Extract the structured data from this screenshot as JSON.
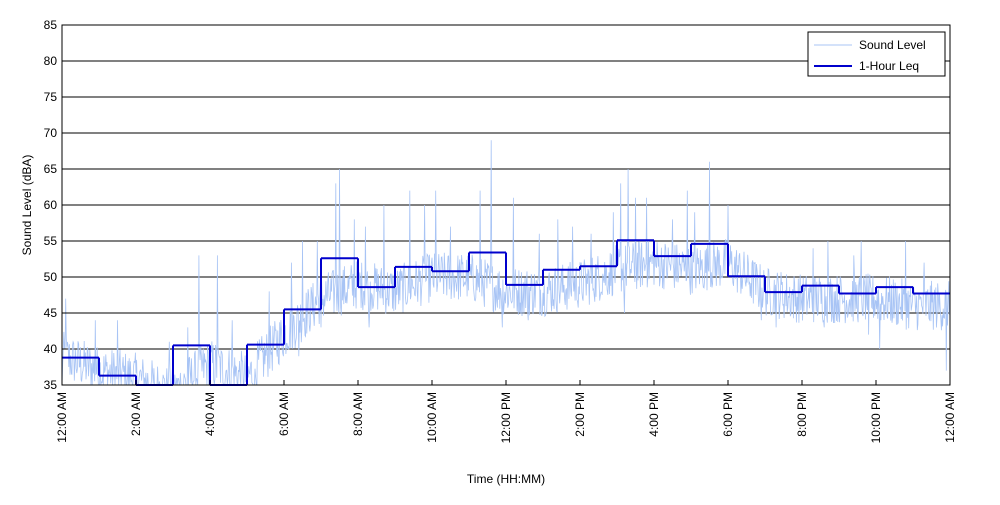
{
  "chart_data": {
    "type": "line",
    "xlabel": "Time (HH:MM)",
    "ylabel": "Sound Level (dBA)",
    "ylim": [
      35,
      85
    ],
    "xlim": [
      0,
      24
    ],
    "yticks": [
      35,
      40,
      45,
      50,
      55,
      60,
      65,
      70,
      75,
      80,
      85
    ],
    "xticks": [
      {
        "hour": 0,
        "label": "12:00 AM"
      },
      {
        "hour": 2,
        "label": "2:00 AM"
      },
      {
        "hour": 4,
        "label": "4:00 AM"
      },
      {
        "hour": 6,
        "label": "6:00 AM"
      },
      {
        "hour": 8,
        "label": "8:00 AM"
      },
      {
        "hour": 10,
        "label": "10:00 AM"
      },
      {
        "hour": 12,
        "label": "12:00 PM"
      },
      {
        "hour": 14,
        "label": "2:00 PM"
      },
      {
        "hour": 16,
        "label": "4:00 PM"
      },
      {
        "hour": 18,
        "label": "6:00 PM"
      },
      {
        "hour": 20,
        "label": "8:00 PM"
      },
      {
        "hour": 22,
        "label": "10:00 PM"
      },
      {
        "hour": 24,
        "label": "12:00 AM"
      }
    ],
    "grid": "horizontal",
    "legend_position": "top-right",
    "colors": {
      "sound_level": "#a8c4f5",
      "leq": "#0000cc"
    },
    "series": [
      {
        "name": "Sound Level",
        "hour_means": [
          39,
          37,
          36,
          34,
          38,
          36,
          42,
          47,
          49,
          48,
          50,
          50,
          48,
          48,
          49,
          51,
          52,
          51,
          52,
          48,
          47,
          47,
          47,
          46
        ],
        "noise_amplitude": 3.5,
        "peaks": [
          [
            0.1,
            47
          ],
          [
            0.9,
            44
          ],
          [
            1.5,
            44
          ],
          [
            2.9,
            41
          ],
          [
            3.4,
            43
          ],
          [
            3.7,
            53
          ],
          [
            4.2,
            53
          ],
          [
            4.6,
            44
          ],
          [
            5.6,
            48
          ],
          [
            6.2,
            52
          ],
          [
            6.5,
            55
          ],
          [
            6.9,
            55
          ],
          [
            7.4,
            63
          ],
          [
            7.5,
            65
          ],
          [
            7.9,
            58
          ],
          [
            8.2,
            57
          ],
          [
            8.7,
            60
          ],
          [
            9.4,
            62
          ],
          [
            9.8,
            60
          ],
          [
            10.1,
            62
          ],
          [
            10.5,
            57
          ],
          [
            11.3,
            62
          ],
          [
            11.6,
            69
          ],
          [
            12.2,
            61
          ],
          [
            12.9,
            56
          ],
          [
            13.4,
            58
          ],
          [
            13.8,
            57
          ],
          [
            14.3,
            56
          ],
          [
            14.9,
            59
          ],
          [
            15.1,
            63
          ],
          [
            15.3,
            65
          ],
          [
            15.5,
            61
          ],
          [
            15.8,
            61
          ],
          [
            16.5,
            58
          ],
          [
            16.9,
            62
          ],
          [
            17.1,
            59
          ],
          [
            17.5,
            66
          ],
          [
            18.0,
            60
          ],
          [
            18.7,
            52
          ],
          [
            19.3,
            56
          ],
          [
            20.3,
            54
          ],
          [
            20.7,
            55
          ],
          [
            21.4,
            53
          ],
          [
            21.6,
            55
          ],
          [
            22.1,
            54
          ],
          [
            22.8,
            55
          ],
          [
            23.3,
            52
          ],
          [
            23.9,
            52
          ]
        ],
        "troughs": [
          [
            0.0,
            35
          ],
          [
            1.0,
            35
          ],
          [
            1.7,
            35
          ],
          [
            2.5,
            34
          ],
          [
            4.4,
            35
          ],
          [
            5.2,
            35
          ],
          [
            6.1,
            40
          ],
          [
            6.4,
            39
          ],
          [
            7.0,
            43
          ],
          [
            8.3,
            43
          ],
          [
            11.9,
            43
          ],
          [
            12.6,
            44
          ],
          [
            15.2,
            45
          ],
          [
            18.9,
            44
          ],
          [
            19.3,
            43
          ],
          [
            20.6,
            43
          ],
          [
            21.8,
            42
          ],
          [
            22.1,
            40
          ],
          [
            23.9,
            37
          ]
        ]
      },
      {
        "name": "1-Hour Leq",
        "step": true,
        "values": [
          38.8,
          36.3,
          34.5,
          40.5,
          34.5,
          40.6,
          45.5,
          52.6,
          48.6,
          51.4,
          50.8,
          53.4,
          48.9,
          51.0,
          51.5,
          55.1,
          52.9,
          54.6,
          50.1,
          47.9,
          48.8,
          47.7,
          48.6,
          47.7
        ]
      }
    ]
  }
}
